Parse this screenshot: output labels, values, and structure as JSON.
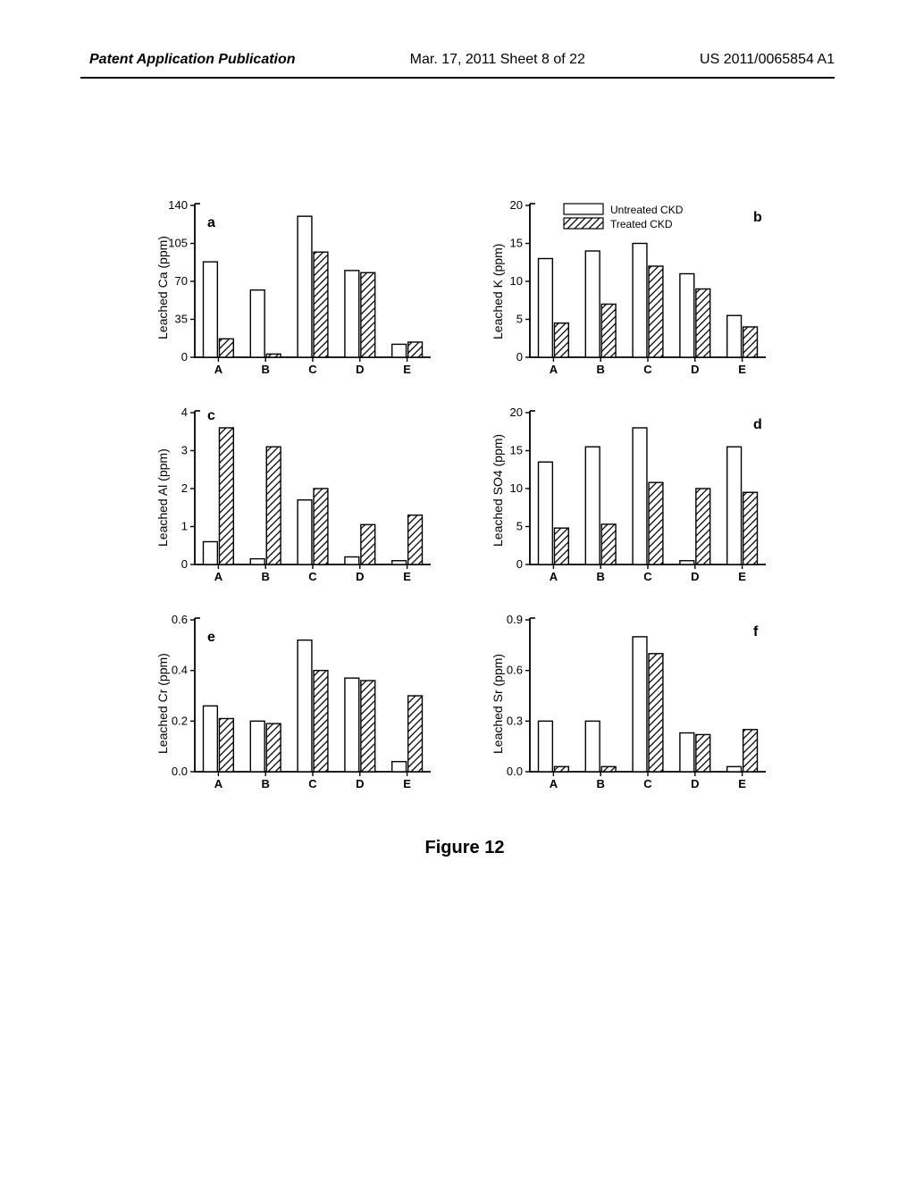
{
  "header": {
    "left": "Patent Application Publication",
    "center": "Mar. 17, 2011  Sheet 8 of 22",
    "right": "US 2011/0065854 A1"
  },
  "figure_caption": "Figure 12",
  "legend": {
    "untreated": "Untreated CKD",
    "treated": "Treated CKD"
  },
  "colors": {
    "bar_outline": "#000000",
    "bar_fill_untreated": "#ffffff",
    "bar_fill_treated": "#ffffff",
    "hatch_color": "#000000",
    "axis_color": "#000000",
    "text_color": "#000000",
    "background": "#ffffff"
  },
  "chart_common": {
    "categories": [
      "A",
      "B",
      "C",
      "D",
      "E"
    ],
    "label_fontsize": 14,
    "tick_fontsize": 13,
    "panel_label_fontsize": 16,
    "bar_outline_width": 1.4,
    "hatch_spacing": 6
  },
  "charts": [
    {
      "id": "a",
      "panel_label": "a",
      "panel_label_pos": "inside-left",
      "ylabel": "Leached Ca (ppm)",
      "ylim": [
        0,
        140
      ],
      "yticks": [
        0,
        35,
        70,
        105,
        140
      ],
      "untreated": [
        88,
        62,
        130,
        80,
        12
      ],
      "treated": [
        17,
        3,
        97,
        78,
        14
      ]
    },
    {
      "id": "b",
      "panel_label": "b",
      "panel_label_pos": "inside-right",
      "ylabel": "Leached K (ppm)",
      "ylim": [
        0,
        20
      ],
      "yticks": [
        0,
        5,
        10,
        15,
        20
      ],
      "untreated": [
        13,
        14,
        15,
        11,
        5.5
      ],
      "treated": [
        4.5,
        7,
        12,
        9,
        4
      ],
      "show_legend": true
    },
    {
      "id": "c",
      "panel_label": "c",
      "panel_label_pos": "inside-left-high",
      "ylabel": "Leached Al (ppm)",
      "ylim": [
        0,
        4
      ],
      "yticks": [
        0,
        1,
        2,
        3,
        4
      ],
      "untreated": [
        0.6,
        0.15,
        1.7,
        0.2,
        0.1
      ],
      "treated": [
        3.6,
        3.1,
        2.0,
        1.05,
        1.3
      ]
    },
    {
      "id": "d",
      "panel_label": "d",
      "panel_label_pos": "inside-right",
      "ylabel": "Leached SO4 (ppm)",
      "ylim": [
        0,
        20
      ],
      "yticks": [
        0,
        5,
        10,
        15,
        20
      ],
      "untreated": [
        13.5,
        15.5,
        18,
        0.5,
        15.5
      ],
      "treated": [
        4.8,
        5.3,
        10.8,
        10,
        9.5
      ]
    },
    {
      "id": "e",
      "panel_label": "e",
      "panel_label_pos": "inside-left",
      "ylabel": "Leached Cr (ppm)",
      "ylim": [
        0,
        0.6
      ],
      "yticks": [
        0,
        0.2,
        0.4,
        0.6
      ],
      "untreated": [
        0.26,
        0.2,
        0.52,
        0.37,
        0.04
      ],
      "treated": [
        0.21,
        0.19,
        0.4,
        0.36,
        0.3
      ]
    },
    {
      "id": "f",
      "panel_label": "f",
      "panel_label_pos": "inside-right",
      "ylabel": "Leached Sr (ppm)",
      "ylim": [
        0,
        0.9
      ],
      "yticks": [
        0.0,
        0.3,
        0.6,
        0.9
      ],
      "untreated": [
        0.3,
        0.3,
        0.8,
        0.23,
        0.03
      ],
      "treated": [
        0.03,
        0.03,
        0.7,
        0.22,
        0.25
      ]
    }
  ]
}
